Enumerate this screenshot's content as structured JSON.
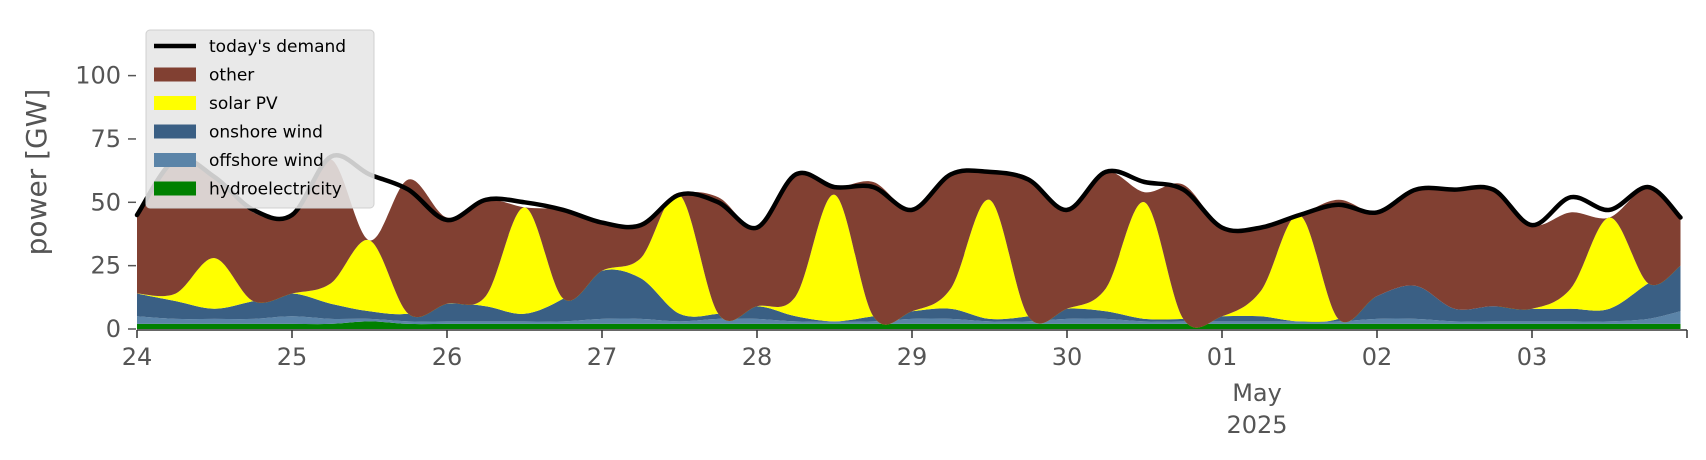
{
  "chart_data": {
    "type": "area",
    "stacked": true,
    "ylabel": "power [GW]",
    "ylim": [
      0,
      118
    ],
    "yticks": [
      0,
      25,
      50,
      75,
      100
    ],
    "xlim": [
      "2025-04-24T00:00",
      "2025-05-04T00:00"
    ],
    "xticks": [
      {
        "date": "2025-04-24",
        "label": "24"
      },
      {
        "date": "2025-04-25",
        "label": "25"
      },
      {
        "date": "2025-04-26",
        "label": "26"
      },
      {
        "date": "2025-04-27",
        "label": "27"
      },
      {
        "date": "2025-04-28",
        "label": "28"
      },
      {
        "date": "2025-04-29",
        "label": "29"
      },
      {
        "date": "2025-04-30",
        "label": "30"
      },
      {
        "date": "2025-05-01",
        "label": "01"
      },
      {
        "date": "2025-05-02",
        "label": "02"
      },
      {
        "date": "2025-05-03",
        "label": "03"
      }
    ],
    "month_label": "May",
    "year_label": "2025",
    "grid": false,
    "legend_position": "top-left",
    "x": [
      "2025-04-24 00:00",
      "2025-04-24 06:00",
      "2025-04-24 12:00",
      "2025-04-24 18:00",
      "2025-04-25 00:00",
      "2025-04-25 06:00",
      "2025-04-25 12:00",
      "2025-04-25 18:00",
      "2025-04-26 00:00",
      "2025-04-26 06:00",
      "2025-04-26 12:00",
      "2025-04-26 18:00",
      "2025-04-27 00:00",
      "2025-04-27 06:00",
      "2025-04-27 12:00",
      "2025-04-27 18:00",
      "2025-04-28 00:00",
      "2025-04-28 06:00",
      "2025-04-28 12:00",
      "2025-04-28 18:00",
      "2025-04-29 00:00",
      "2025-04-29 06:00",
      "2025-04-29 12:00",
      "2025-04-29 18:00",
      "2025-04-30 00:00",
      "2025-04-30 06:00",
      "2025-04-30 12:00",
      "2025-04-30 18:00",
      "2025-05-01 00:00",
      "2025-05-01 06:00",
      "2025-05-01 12:00",
      "2025-05-01 18:00",
      "2025-05-02 00:00",
      "2025-05-02 06:00",
      "2025-05-02 12:00",
      "2025-05-02 18:00",
      "2025-05-03 00:00",
      "2025-05-03 06:00",
      "2025-05-03 12:00",
      "2025-05-03 18:00",
      "2025-05-03 23:00"
    ],
    "series": [
      {
        "name": "hydroelectricity",
        "color": "#008000",
        "values": [
          2,
          2,
          2,
          2,
          2,
          2,
          3,
          2,
          2,
          2,
          2,
          2,
          2,
          2,
          2,
          2,
          2,
          2,
          2,
          2,
          2,
          2,
          2,
          2,
          2,
          2,
          2,
          2,
          2,
          2,
          2,
          2,
          2,
          2,
          2,
          2,
          2,
          2,
          2,
          2,
          2
        ]
      },
      {
        "name": "offshore wind",
        "color": "#5b84a8",
        "values": [
          3,
          2,
          2,
          2,
          3,
          2,
          1,
          1,
          1,
          1,
          1,
          1,
          2,
          2,
          1,
          2,
          2,
          1,
          1,
          1,
          2,
          2,
          1,
          1,
          2,
          2,
          1,
          1,
          1,
          1,
          1,
          1,
          2,
          2,
          1,
          1,
          1,
          1,
          1,
          2,
          5
        ]
      },
      {
        "name": "onshore wind",
        "color": "#3a5f84",
        "values": [
          9,
          7,
          4,
          7,
          9,
          6,
          3,
          3,
          7,
          6,
          3,
          9,
          19,
          16,
          3,
          2,
          5,
          2,
          0,
          2,
          3,
          4,
          1,
          2,
          4,
          3,
          1,
          1,
          2,
          2,
          0,
          1,
          9,
          13,
          5,
          6,
          5,
          5,
          5,
          14,
          18
        ]
      },
      {
        "name": "solar PV",
        "color": "#ffff00",
        "values": [
          0,
          3,
          20,
          0,
          0,
          8,
          28,
          0,
          0,
          4,
          42,
          0,
          0,
          8,
          47,
          0,
          0,
          8,
          50,
          0,
          0,
          8,
          47,
          0,
          0,
          9,
          46,
          0,
          0,
          10,
          42,
          0,
          0,
          0,
          0,
          0,
          0,
          8,
          36,
          0,
          0
        ]
      },
      {
        "name": "other",
        "color": "#814032",
        "values": [
          31,
          53,
          33,
          35,
          31,
          49,
          0,
          53,
          34,
          38,
          0,
          35,
          19,
          13,
          0,
          46,
          31,
          48,
          3,
          53,
          40,
          45,
          11,
          55,
          39,
          46,
          4,
          53,
          35,
          25,
          0,
          47,
          33,
          38,
          47,
          46,
          33,
          30,
          0,
          38,
          19
        ]
      },
      {
        "name": "today's demand",
        "type": "line",
        "color": "#000000",
        "values": [
          45,
          67,
          60,
          47,
          45,
          68,
          61,
          55,
          43,
          51,
          50,
          47,
          42,
          41,
          53,
          50,
          40,
          61,
          56,
          56,
          47,
          61,
          62,
          59,
          47,
          62,
          58,
          55,
          40,
          40,
          45,
          49,
          46,
          55,
          55,
          55,
          41,
          52,
          47,
          56,
          44
        ]
      }
    ]
  }
}
